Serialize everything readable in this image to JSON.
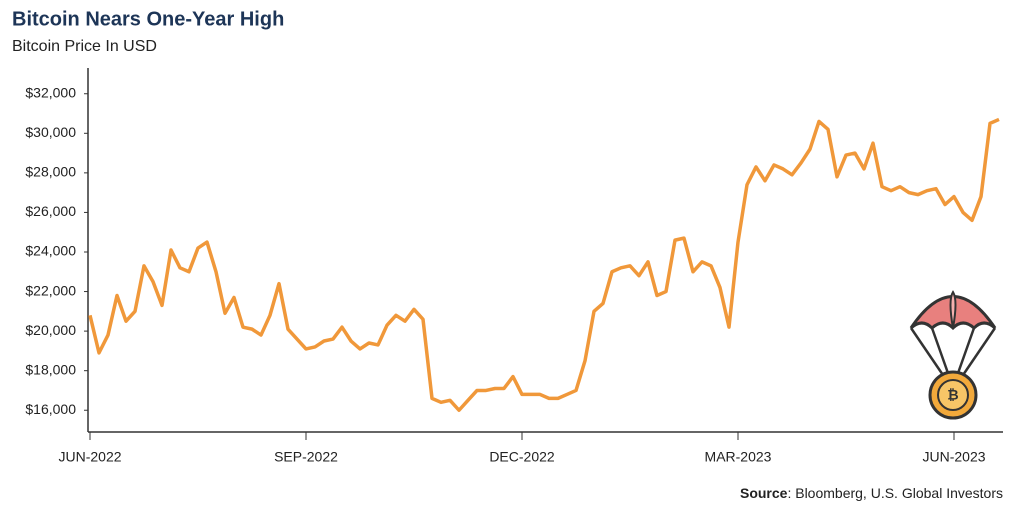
{
  "chart_data": {
    "type": "line",
    "title": "Bitcoin Nears One-Year High",
    "subtitle": "Bitcoin Price In USD",
    "source_label": "Source",
    "source_text": ": Bloomberg, U.S. Global Investors",
    "categories": [
      "JUN-2022",
      null,
      null,
      null,
      null,
      null,
      null,
      null,
      null,
      null,
      null,
      null,
      null,
      null,
      null,
      null,
      null,
      null,
      null,
      null,
      null,
      null,
      null,
      null,
      "SEP-2022",
      null,
      null,
      null,
      null,
      null,
      null,
      null,
      null,
      null,
      null,
      null,
      null,
      null,
      null,
      null,
      null,
      null,
      null,
      null,
      null,
      null,
      null,
      null,
      "DEC-2022",
      null,
      null,
      null,
      null,
      null,
      null,
      null,
      null,
      null,
      null,
      null,
      null,
      null,
      null,
      null,
      null,
      null,
      null,
      null,
      null,
      null,
      null,
      null,
      "MAR-2023",
      null,
      null,
      null,
      null,
      null,
      null,
      null,
      null,
      null,
      null,
      null,
      null,
      null,
      null,
      null,
      null,
      null,
      null,
      null,
      null,
      null,
      null,
      null,
      "JUN-2023",
      null,
      null,
      null,
      null,
      null
    ],
    "series": [
      {
        "name": "Bitcoin",
        "color": "#f0983a",
        "values": [
          20800,
          18900,
          19800,
          21800,
          20500,
          21000,
          23300,
          22500,
          21300,
          24100,
          23200,
          23000,
          24200,
          24500,
          23000,
          20900,
          21700,
          20200,
          20100,
          19800,
          20800,
          22400,
          20100,
          19600,
          19100,
          19200,
          19500,
          19600,
          20200,
          19500,
          19100,
          19400,
          19300,
          20300,
          20800,
          20500,
          21100,
          20600,
          16600,
          16400,
          16500,
          16000,
          16500,
          17000,
          17000,
          17100,
          17100,
          17700,
          16800,
          16800,
          16800,
          16600,
          16600,
          16800,
          17000,
          18500,
          21000,
          21400,
          23000,
          23200,
          23300,
          22800,
          23500,
          21800,
          22000,
          24600,
          24700,
          23000,
          23500,
          23300,
          22200,
          20200,
          24500,
          27400,
          28300,
          27600,
          28400,
          28200,
          27900,
          28500,
          29200,
          30600,
          30200,
          27800,
          28900,
          29000,
          28200,
          29500,
          27300,
          27100,
          27300,
          27000,
          26900,
          27100,
          27200,
          26400,
          26800,
          26000,
          25600,
          26800,
          30500,
          30700
        ]
      }
    ],
    "ylim": [
      14900,
      33200
    ],
    "yticks": [
      {
        "value": 16000,
        "label": "$16,000"
      },
      {
        "value": 18000,
        "label": "$18,000"
      },
      {
        "value": 20000,
        "label": "$20,000"
      },
      {
        "value": 22000,
        "label": "$22,000"
      },
      {
        "value": 24000,
        "label": "$24,000"
      },
      {
        "value": 26000,
        "label": "$26,000"
      },
      {
        "value": 28000,
        "label": "$28,000"
      },
      {
        "value": 30000,
        "label": "$30,000"
      },
      {
        "value": 32000,
        "label": "$32,000"
      }
    ],
    "grid": false
  }
}
